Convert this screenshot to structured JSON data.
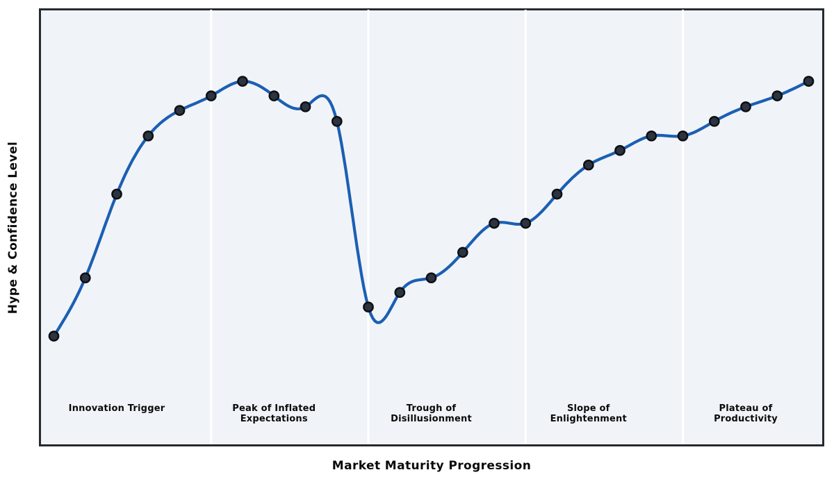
{
  "chart_data": {
    "type": "line",
    "title": "",
    "xlabel": "Market Maturity Progression",
    "ylabel": "Hype & Confidence Level",
    "x": [
      0,
      1,
      2,
      3,
      4,
      5,
      6,
      7,
      8,
      9,
      10,
      11,
      12,
      13,
      14,
      15,
      16,
      17,
      18,
      19,
      20,
      21,
      22,
      23,
      24
    ],
    "values": [
      25,
      41,
      64,
      80,
      87,
      91,
      95,
      91,
      88,
      84,
      33,
      37,
      41,
      48,
      56,
      56,
      64,
      72,
      76,
      80,
      80,
      84,
      88,
      91,
      95
    ],
    "ylim": [
      0,
      115
    ],
    "grid": false,
    "legend": false,
    "axis_ticks": "none",
    "marker": "circle",
    "smoothing": "cubic-spline",
    "phases": [
      {
        "label": "Innovation Trigger",
        "center_index": 2
      },
      {
        "label": "Peak of Inflated\nExpectations",
        "center_index": 7
      },
      {
        "label": "Trough of\nDisillusionment",
        "center_index": 12
      },
      {
        "label": "Slope of\nEnlightenment",
        "center_index": 17
      },
      {
        "label": "Plateau of\nProductivity",
        "center_index": 22
      }
    ],
    "divider_indices": [
      5,
      10,
      15,
      20
    ],
    "colors": {
      "line": "#1c5fb3",
      "marker_fill": "#2b3440",
      "marker_edge": "#0d0f12",
      "plot_background": "#f0f4f8",
      "divider": "#ffffff",
      "spine": "#26292e",
      "text": "#0a0a0a"
    }
  }
}
